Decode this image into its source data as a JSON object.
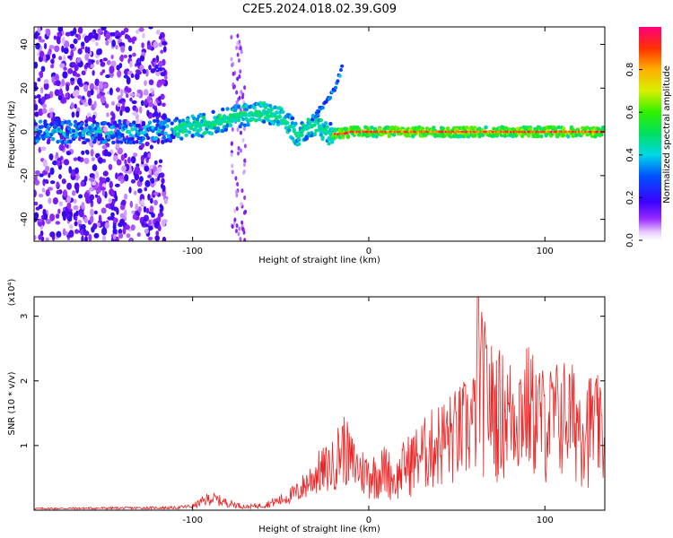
{
  "figure": {
    "title": "C2E5.2024.018.02.39.G09"
  },
  "chart_data": [
    {
      "type": "heatmap",
      "xlabel": "Height of straight line (km)",
      "ylabel": "Frequency (Hz)",
      "xlim": [
        -190,
        134
      ],
      "ylim": [
        -50,
        48
      ],
      "xticks": [
        -100,
        0,
        100
      ],
      "xtick_labels": [
        "-100",
        "0",
        "100"
      ],
      "yticks": [
        -40,
        -20,
        0,
        20,
        40
      ],
      "ytick_labels": [
        "-40",
        "-20",
        "0",
        "20",
        "40"
      ],
      "grid": false,
      "colorbar": {
        "label": "Normalized spectral amplitude",
        "range": [
          0,
          1
        ],
        "ticks": [
          0.0,
          0.2,
          0.4,
          0.6,
          0.8
        ],
        "tick_labels": [
          "0.0",
          "0.2",
          "0.4",
          "0.6",
          "0.8"
        ],
        "colormap": "rainbow",
        "low_color": "#ffffff",
        "high_color": "#ff0080"
      },
      "ridge": {
        "description_points_x": [
          -190,
          -160,
          -130,
          -110,
          -95,
          -80,
          -70,
          -60,
          -50,
          -45,
          -40,
          -35,
          -30,
          -25,
          -20,
          -15,
          -10,
          0,
          10,
          50,
          100,
          134
        ],
        "description_points_freq": [
          0,
          0,
          0,
          1,
          3,
          6,
          8,
          9,
          6,
          3,
          -2,
          2,
          4,
          0,
          -1,
          -1,
          0,
          0,
          0,
          0,
          0,
          0
        ]
      },
      "branch": {
        "x": [
          -32,
          -27,
          -23,
          -19,
          -15
        ],
        "freq": [
          6,
          11,
          15,
          20,
          30
        ]
      }
    },
    {
      "type": "line",
      "xlabel": "Height of straight line (km)",
      "ylabel": "SNR (10 * v/v)",
      "yscale_label": "(x10⁴)",
      "xlim": [
        -190,
        134
      ],
      "ylim": [
        0,
        3.3
      ],
      "xticks": [
        -100,
        0,
        100
      ],
      "xtick_labels": [
        "-100",
        "0",
        "100"
      ],
      "yticks": [
        1,
        2,
        3
      ],
      "ytick_labels": [
        "1",
        "2",
        "3"
      ],
      "grid": false,
      "series": [
        {
          "color": "#ee2222",
          "envelope_x": [
            -190,
            -150,
            -110,
            -100,
            -90,
            -80,
            -70,
            -60,
            -50,
            -40,
            -30,
            -20,
            -15,
            -10,
            -5,
            0,
            5,
            10,
            15,
            20,
            30,
            40,
            50,
            60,
            62,
            70,
            80,
            90,
            100,
            110,
            120,
            130,
            134
          ],
          "envelope_y": [
            0.04,
            0.05,
            0.06,
            0.1,
            0.3,
            0.18,
            0.08,
            0.12,
            0.25,
            0.45,
            0.9,
            1.1,
            1.6,
            1.2,
            1.0,
            0.9,
            0.9,
            1.05,
            0.7,
            1.1,
            1.4,
            1.7,
            1.9,
            2.2,
            3.3,
            2.6,
            2.4,
            2.6,
            2.2,
            2.4,
            2.2,
            2.1,
            1.5
          ]
        }
      ]
    }
  ]
}
